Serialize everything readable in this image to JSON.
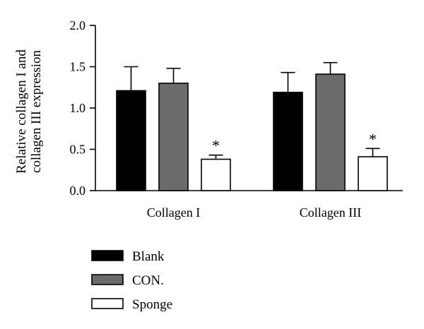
{
  "chart_data": {
    "type": "bar",
    "title": "",
    "xlabel": "",
    "ylabel": [
      "Relative collagen I and",
      "collagen III expression"
    ],
    "categories": [
      "Collagen I",
      "Collagen III"
    ],
    "ylim": [
      0,
      2.0
    ],
    "yticks": [
      0.0,
      0.5,
      1.0,
      1.5,
      2.0
    ],
    "ytick_labels": [
      "0.0",
      "0.5",
      "1.0",
      "1.5",
      "2.0"
    ],
    "grid": false,
    "legend_position": "bottom-left",
    "series": [
      {
        "name": "Blank",
        "color": "#000000",
        "values": [
          1.21,
          1.19
        ],
        "errors": [
          0.29,
          0.24
        ],
        "annotations": [
          "",
          ""
        ]
      },
      {
        "name": "CON.",
        "color": "#6b6b6b",
        "values": [
          1.3,
          1.41
        ],
        "errors": [
          0.18,
          0.14
        ],
        "annotations": [
          "",
          ""
        ]
      },
      {
        "name": "Sponge",
        "color": "#ffffff",
        "values": [
          0.38,
          0.41
        ],
        "errors": [
          0.05,
          0.1
        ],
        "annotations": [
          "*",
          "*"
        ]
      }
    ]
  }
}
